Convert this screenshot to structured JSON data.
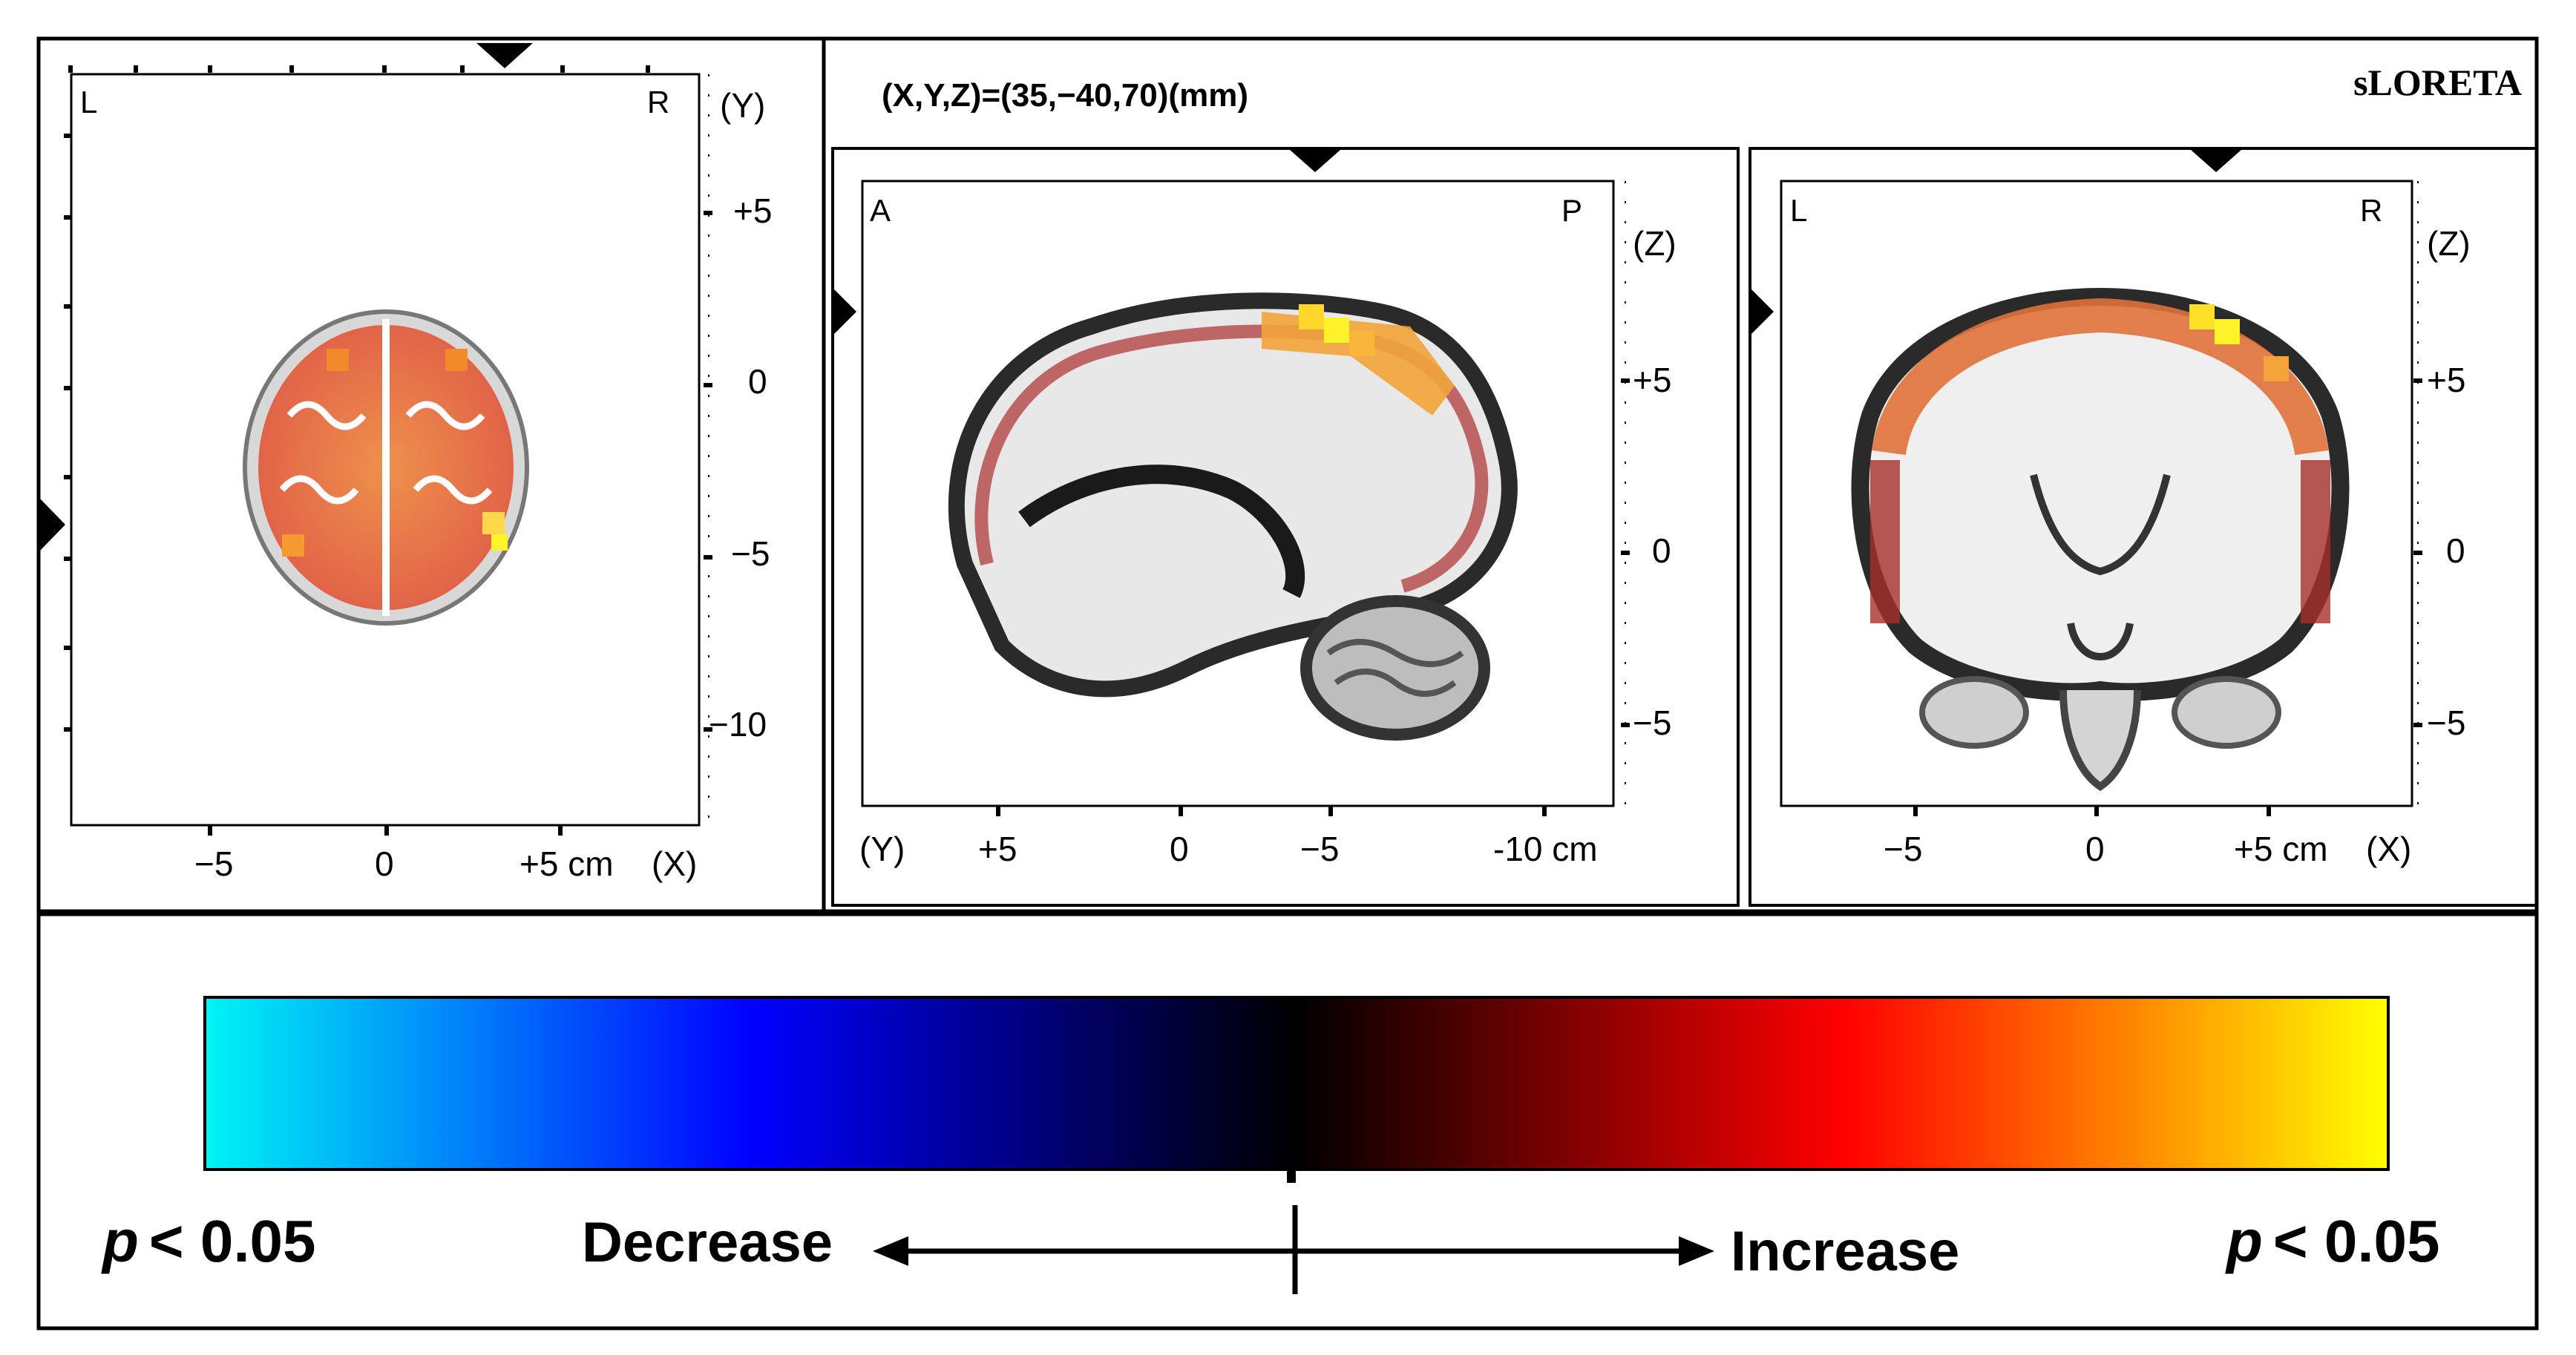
{
  "header": {
    "coordinates": "(X,Y,Z)=(35,−40,70)(mm)",
    "software": "sLORETA"
  },
  "axial": {
    "corner_left": "L",
    "corner_right": "R",
    "axis_y_name": "(Y)",
    "axis_x_name": "(X)",
    "y_ticks": [
      "+5",
      "0",
      "−5",
      "−10"
    ],
    "x_ticks": [
      "−5",
      "0",
      "+5 cm"
    ]
  },
  "sagittal": {
    "corner_left": "A",
    "corner_right": "P",
    "axis_z_name": "(Z)",
    "axis_y_name": "(Y)",
    "z_ticks": [
      "+5",
      "0",
      "−5"
    ],
    "y_ticks": [
      "+5",
      "0",
      "−5",
      "-10 cm"
    ]
  },
  "coronal": {
    "corner_left": "L",
    "corner_right": "R",
    "axis_z_name": "(Z)",
    "axis_x_name": "(X)",
    "z_ticks": [
      "+5",
      "0",
      "−5"
    ],
    "x_ticks": [
      "−5",
      "0",
      "+5 cm",
      "(X)"
    ]
  },
  "legend": {
    "left_p_symbol": "p",
    "left_threshold": "< 0.05",
    "right_p_symbol": "p",
    "right_threshold": "< 0.05",
    "decrease_label": "Decrease",
    "increase_label": "Increase",
    "colormap": [
      "#00f5f5",
      "#0000ff",
      "#000000",
      "#ff0000",
      "#ffff00"
    ]
  }
}
